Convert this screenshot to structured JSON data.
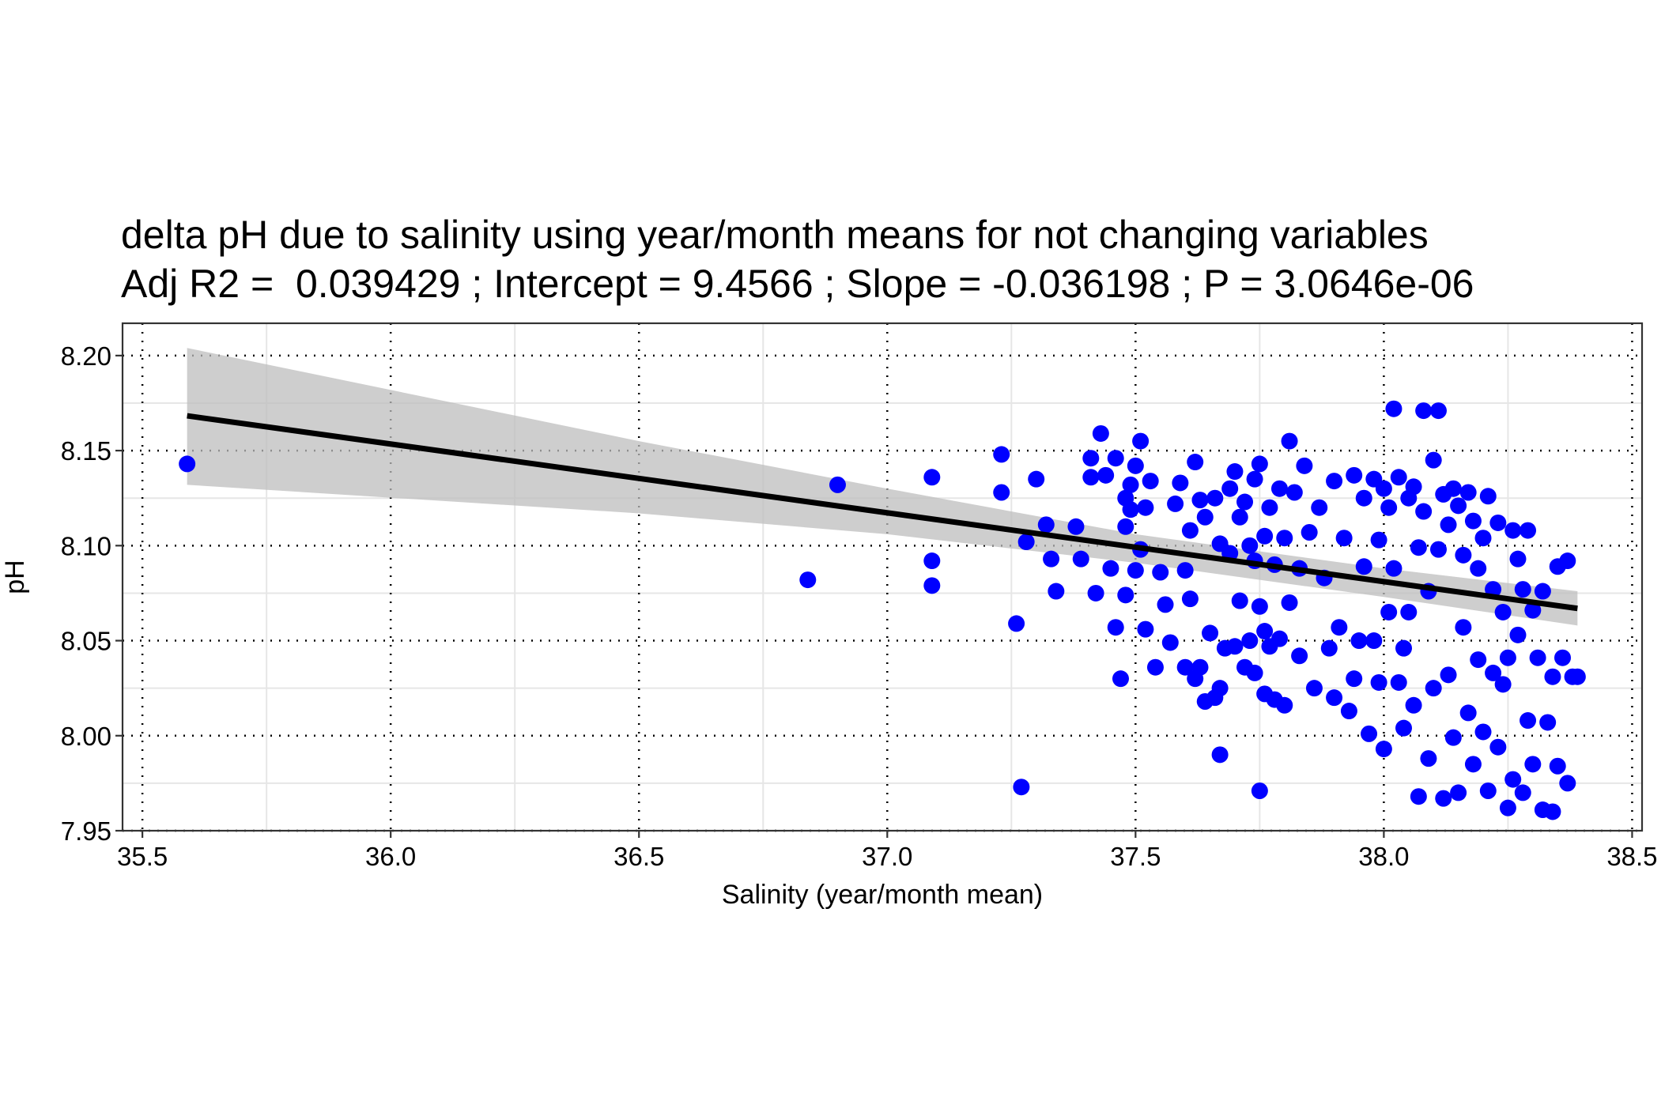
{
  "chart_data": {
    "type": "scatter",
    "title": "delta pH due to salinity using year/month means for not changing variables",
    "subtitle": "Adj R2 =  0.039429 ; Intercept = 9.4566 ; Slope = -0.036198 ; P = 3.0646e-06",
    "xlabel": "Salinity (year/month mean)",
    "ylabel": "pH",
    "xlim": [
      35.46,
      38.52
    ],
    "ylim": [
      7.95,
      8.217
    ],
    "x_ticks": [
      35.5,
      36.0,
      36.5,
      37.0,
      37.5,
      38.0,
      38.5
    ],
    "x_tick_labels": [
      "35.5",
      "36.0",
      "36.5",
      "37.0",
      "37.5",
      "38.0",
      "38.5"
    ],
    "y_ticks": [
      7.95,
      8.0,
      8.05,
      8.1,
      8.15,
      8.2
    ],
    "y_tick_labels": [
      "7.95",
      "8.00",
      "8.05",
      "8.10",
      "8.15",
      "8.20"
    ],
    "grid": true,
    "regression": {
      "intercept": 9.4566,
      "slope": -0.036198,
      "x_range": [
        35.59,
        38.39
      ]
    },
    "confidence_band": [
      {
        "x": 35.59,
        "lower": 8.132,
        "upper": 8.204
      },
      {
        "x": 36.5,
        "lower": 8.117,
        "upper": 8.155
      },
      {
        "x": 37.0,
        "lower": 8.106,
        "upper": 8.13
      },
      {
        "x": 37.5,
        "lower": 8.091,
        "upper": 8.106
      },
      {
        "x": 38.0,
        "lower": 8.073,
        "upper": 8.088
      },
      {
        "x": 38.39,
        "lower": 8.058,
        "upper": 8.076
      }
    ],
    "series": [
      {
        "points": [
          [
            35.59,
            8.143
          ],
          [
            36.84,
            8.082
          ],
          [
            36.9,
            8.132
          ],
          [
            37.09,
            8.136
          ],
          [
            37.09,
            8.092
          ],
          [
            37.09,
            8.079
          ],
          [
            37.23,
            8.148
          ],
          [
            37.23,
            8.128
          ],
          [
            37.26,
            8.059
          ],
          [
            37.27,
            7.973
          ],
          [
            37.28,
            8.102
          ],
          [
            37.3,
            8.135
          ],
          [
            37.32,
            8.111
          ],
          [
            37.33,
            8.093
          ],
          [
            37.34,
            8.076
          ],
          [
            37.38,
            8.11
          ],
          [
            37.39,
            8.093
          ],
          [
            37.41,
            8.136
          ],
          [
            37.41,
            8.146
          ],
          [
            37.42,
            8.075
          ],
          [
            37.43,
            8.159
          ],
          [
            37.44,
            8.137
          ],
          [
            37.45,
            8.088
          ],
          [
            37.46,
            8.146
          ],
          [
            37.46,
            8.057
          ],
          [
            37.47,
            8.03
          ],
          [
            37.48,
            8.125
          ],
          [
            37.48,
            8.11
          ],
          [
            37.48,
            8.074
          ],
          [
            37.49,
            8.119
          ],
          [
            37.49,
            8.132
          ],
          [
            37.5,
            8.142
          ],
          [
            37.5,
            8.087
          ],
          [
            37.51,
            8.155
          ],
          [
            37.51,
            8.098
          ],
          [
            37.52,
            8.12
          ],
          [
            37.52,
            8.056
          ],
          [
            37.53,
            8.134
          ],
          [
            37.54,
            8.036
          ],
          [
            37.55,
            8.086
          ],
          [
            37.56,
            8.069
          ],
          [
            37.57,
            8.049
          ],
          [
            37.58,
            8.122
          ],
          [
            37.59,
            8.133
          ],
          [
            37.6,
            8.087
          ],
          [
            37.6,
            8.036
          ],
          [
            37.61,
            8.072
          ],
          [
            37.61,
            8.108
          ],
          [
            37.62,
            8.03
          ],
          [
            37.62,
            8.144
          ],
          [
            37.63,
            8.124
          ],
          [
            37.63,
            8.036
          ],
          [
            37.64,
            8.115
          ],
          [
            37.64,
            8.018
          ],
          [
            37.65,
            8.054
          ],
          [
            37.66,
            8.125
          ],
          [
            37.66,
            8.02
          ],
          [
            37.67,
            8.101
          ],
          [
            37.67,
            8.025
          ],
          [
            37.67,
            7.99
          ],
          [
            37.68,
            8.046
          ],
          [
            37.69,
            8.13
          ],
          [
            37.69,
            8.096
          ],
          [
            37.7,
            8.139
          ],
          [
            37.7,
            8.047
          ],
          [
            37.71,
            8.115
          ],
          [
            37.71,
            8.071
          ],
          [
            37.72,
            8.123
          ],
          [
            37.72,
            8.036
          ],
          [
            37.73,
            8.1
          ],
          [
            37.73,
            8.05
          ],
          [
            37.74,
            8.135
          ],
          [
            37.74,
            8.092
          ],
          [
            37.74,
            8.033
          ],
          [
            37.75,
            8.143
          ],
          [
            37.75,
            8.068
          ],
          [
            37.75,
            7.971
          ],
          [
            37.76,
            8.105
          ],
          [
            37.76,
            8.055
          ],
          [
            37.76,
            8.022
          ],
          [
            37.77,
            8.12
          ],
          [
            37.77,
            8.047
          ],
          [
            37.78,
            8.09
          ],
          [
            37.78,
            8.019
          ],
          [
            37.79,
            8.13
          ],
          [
            37.79,
            8.051
          ],
          [
            37.8,
            8.104
          ],
          [
            37.8,
            8.016
          ],
          [
            37.81,
            8.155
          ],
          [
            37.81,
            8.07
          ],
          [
            37.82,
            8.128
          ],
          [
            37.83,
            8.088
          ],
          [
            37.83,
            8.042
          ],
          [
            37.84,
            8.142
          ],
          [
            37.85,
            8.107
          ],
          [
            37.86,
            8.025
          ],
          [
            37.87,
            8.12
          ],
          [
            37.88,
            8.083
          ],
          [
            37.89,
            8.046
          ],
          [
            37.9,
            8.134
          ],
          [
            37.9,
            8.02
          ],
          [
            37.91,
            8.057
          ],
          [
            37.92,
            8.104
          ],
          [
            37.93,
            8.013
          ],
          [
            37.94,
            8.137
          ],
          [
            37.94,
            8.03
          ],
          [
            37.95,
            8.05
          ],
          [
            37.96,
            8.089
          ],
          [
            37.96,
            8.125
          ],
          [
            37.97,
            8.001
          ],
          [
            37.98,
            8.135
          ],
          [
            37.98,
            8.05
          ],
          [
            37.99,
            8.028
          ],
          [
            37.99,
            8.103
          ],
          [
            38.0,
            8.13
          ],
          [
            38.0,
            7.993
          ],
          [
            38.01,
            8.12
          ],
          [
            38.01,
            8.065
          ],
          [
            38.02,
            8.172
          ],
          [
            38.02,
            8.088
          ],
          [
            38.03,
            8.136
          ],
          [
            38.03,
            8.028
          ],
          [
            38.04,
            8.046
          ],
          [
            38.04,
            8.004
          ],
          [
            38.05,
            8.125
          ],
          [
            38.05,
            8.065
          ],
          [
            38.06,
            8.131
          ],
          [
            38.06,
            8.016
          ],
          [
            38.07,
            8.099
          ],
          [
            38.07,
            7.968
          ],
          [
            38.08,
            8.171
          ],
          [
            38.08,
            8.118
          ],
          [
            38.09,
            8.076
          ],
          [
            38.09,
            7.988
          ],
          [
            38.1,
            8.145
          ],
          [
            38.1,
            8.025
          ],
          [
            38.11,
            8.171
          ],
          [
            38.11,
            8.098
          ],
          [
            38.12,
            8.127
          ],
          [
            38.12,
            7.967
          ],
          [
            38.13,
            8.111
          ],
          [
            38.13,
            8.032
          ],
          [
            38.14,
            8.13
          ],
          [
            38.14,
            7.999
          ],
          [
            38.15,
            8.121
          ],
          [
            38.15,
            7.97
          ],
          [
            38.16,
            8.095
          ],
          [
            38.16,
            8.057
          ],
          [
            38.17,
            8.128
          ],
          [
            38.17,
            8.012
          ],
          [
            38.18,
            8.113
          ],
          [
            38.18,
            7.985
          ],
          [
            38.19,
            8.088
          ],
          [
            38.19,
            8.04
          ],
          [
            38.2,
            8.104
          ],
          [
            38.2,
            8.002
          ],
          [
            38.21,
            8.126
          ],
          [
            38.21,
            7.971
          ],
          [
            38.22,
            8.077
          ],
          [
            38.22,
            8.033
          ],
          [
            38.23,
            8.112
          ],
          [
            38.23,
            7.994
          ],
          [
            38.24,
            8.065
          ],
          [
            38.24,
            8.027
          ],
          [
            38.25,
            8.041
          ],
          [
            38.25,
            7.962
          ],
          [
            38.26,
            8.108
          ],
          [
            38.26,
            7.977
          ],
          [
            38.27,
            8.093
          ],
          [
            38.27,
            8.053
          ],
          [
            38.28,
            8.077
          ],
          [
            38.28,
            7.97
          ],
          [
            38.29,
            8.108
          ],
          [
            38.29,
            8.008
          ],
          [
            38.3,
            8.066
          ],
          [
            38.3,
            7.985
          ],
          [
            38.31,
            8.041
          ],
          [
            38.32,
            8.076
          ],
          [
            38.32,
            7.961
          ],
          [
            38.33,
            8.007
          ],
          [
            38.34,
            8.031
          ],
          [
            38.34,
            7.96
          ],
          [
            38.35,
            8.089
          ],
          [
            38.35,
            7.984
          ],
          [
            38.36,
            8.041
          ],
          [
            38.37,
            7.975
          ],
          [
            38.37,
            8.092
          ],
          [
            38.38,
            8.031
          ],
          [
            38.39,
            8.031
          ]
        ]
      }
    ]
  },
  "colors": {
    "points": "#0000ff",
    "line": "#000000",
    "band": "#bebebe",
    "grid_major": "#000000",
    "grid_minor": "#e6e6e6",
    "axis_text": "#000000"
  }
}
